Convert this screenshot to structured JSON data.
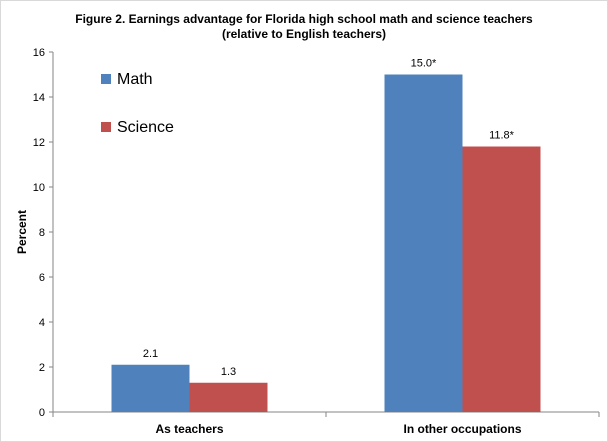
{
  "chart_data": {
    "type": "bar",
    "title_lines": [
      "Figure 2. Earnings advantage for Florida high school math and science teachers",
      "(relative to English teachers)"
    ],
    "ylabel": "Percent",
    "xlabel": "",
    "ylim": [
      0,
      16
    ],
    "yticks": [
      "0",
      "2",
      "4",
      "6",
      "8",
      "10",
      "12",
      "14",
      "16"
    ],
    "categories": [
      "As teachers",
      "In other occupations"
    ],
    "series": [
      {
        "name": "Math",
        "color": "#4f81bd",
        "values": [
          2.1,
          15.0
        ],
        "labels": [
          "2.1",
          "15.0*"
        ]
      },
      {
        "name": "Science",
        "color": "#c0504d",
        "values": [
          1.3,
          11.8
        ],
        "labels": [
          "1.3",
          "11.8*"
        ]
      }
    ],
    "legend_position": "top-left",
    "grid": false
  }
}
